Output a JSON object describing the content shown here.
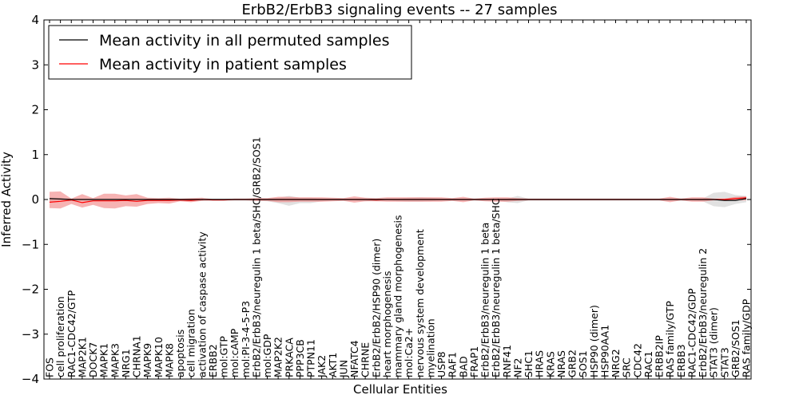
{
  "chart_data": {
    "type": "line",
    "title": "ErbB2/ErbB3 signaling events -- 27 samples",
    "xlabel": "Cellular Entities",
    "ylabel": "Inferred Activity",
    "ylim": [
      -4,
      4
    ],
    "yticks": [
      "−4",
      "−3",
      "−2",
      "−1",
      "0",
      "1",
      "2",
      "3",
      "4"
    ],
    "legend": {
      "position": "top-left",
      "entries": [
        {
          "label": "Mean activity in all permuted samples",
          "color": "#000000"
        },
        {
          "label": "Mean activity in patient samples",
          "color": "#ff0000"
        }
      ]
    },
    "categories": [
      "FOS",
      "cell proliferation",
      "RAC1-CDC42/GTP",
      "MAP2K1",
      "DOCK7",
      "MAPK1",
      "MAPK3",
      "NRG1",
      "CHRNA1",
      "MAPK9",
      "MAPK10",
      "MAPK8",
      "apoptosis",
      "cell migration",
      "activation of caspase activity",
      "ERBB2",
      "mol:GTP",
      "mol:cAMP",
      "mol:PI-3-4-5-P3",
      "ErbB2/ErbB3/neuregulin 1 beta/SHC/GRB2/SOS1",
      "mol:GDP",
      "MAP2K2",
      "PRKACA",
      "PPP3CB",
      "PTPN11",
      "JAK2",
      "AKT1",
      "JUN",
      "NFATC4",
      "CHRNE",
      "ErbB2/ErbB2/HSP90 (dimer)",
      "heart morphogenesis",
      "mammary gland morphogenesis",
      "mol:Ca2+",
      "nervous system development",
      "myelination",
      "USP8",
      "RAF1",
      "BAD",
      "FRAP1",
      "ErbB2/ErbB3/neuregulin 1 beta",
      "ErbB2/ErbB3/neuregulin 1 beta/SHC",
      "RNF41",
      "NF2",
      "SHC1",
      "HRAS",
      "KRAS",
      "NRAS",
      "GRB2",
      "SOS1",
      "HSP90 (dimer)",
      "HSP90AA1",
      "NRG2",
      "SRC",
      "CDC42",
      "RAC1",
      "ERBB2IP",
      "RAS family/GTP",
      "ERBB3",
      "RAC1-CDC42/GDP",
      "ErbB2/ErbB3/neuregulin 2",
      "STAT3 (dimer)",
      "STAT3",
      "GRB2/SOS1",
      "RAS family/GDP"
    ],
    "series": [
      {
        "name": "Mean activity in all permuted samples",
        "color": "#000000",
        "values": [
          0.02,
          0.01,
          0.0,
          0.0,
          0.0,
          0.0,
          0.0,
          0.0,
          0.0,
          0.0,
          0.0,
          0.0,
          0.0,
          0.0,
          0.0,
          0.0,
          0.0,
          0.0,
          0.0,
          0.0,
          0.0,
          0.0,
          0.0,
          0.0,
          0.0,
          0.0,
          0.0,
          0.0,
          0.0,
          0.0,
          0.0,
          0.0,
          0.0,
          0.0,
          0.0,
          0.0,
          0.0,
          0.0,
          0.0,
          0.0,
          0.0,
          0.0,
          0.0,
          0.0,
          0.0,
          0.0,
          0.0,
          0.0,
          0.0,
          0.0,
          0.0,
          0.0,
          0.0,
          0.0,
          0.0,
          0.0,
          0.0,
          0.0,
          0.0,
          0.0,
          0.0,
          0.0,
          -0.02,
          -0.02,
          0.02
        ],
        "band_upper": [
          0.04,
          0.03,
          0.02,
          0.02,
          0.02,
          0.02,
          0.02,
          0.02,
          0.02,
          0.02,
          0.02,
          0.02,
          0.02,
          0.02,
          0.02,
          0.02,
          0.02,
          0.02,
          0.02,
          0.02,
          0.02,
          0.04,
          0.08,
          0.04,
          0.04,
          0.02,
          0.02,
          0.02,
          0.02,
          0.02,
          0.02,
          0.02,
          0.02,
          0.04,
          0.05,
          0.04,
          0.02,
          0.02,
          0.02,
          0.02,
          0.02,
          0.02,
          0.02,
          0.08,
          0.02,
          0.02,
          0.02,
          0.02,
          0.02,
          0.02,
          0.02,
          0.02,
          0.02,
          0.02,
          0.02,
          0.02,
          0.02,
          0.02,
          0.02,
          0.02,
          0.02,
          0.15,
          0.17,
          0.1,
          0.08
        ],
        "band_lower": [
          -0.04,
          -0.03,
          -0.02,
          -0.02,
          -0.02,
          -0.02,
          -0.02,
          -0.02,
          -0.02,
          -0.02,
          -0.02,
          -0.02,
          -0.02,
          -0.02,
          -0.02,
          -0.02,
          -0.02,
          -0.02,
          -0.02,
          -0.02,
          -0.04,
          -0.08,
          -0.14,
          -0.08,
          -0.08,
          -0.04,
          -0.02,
          -0.02,
          -0.02,
          -0.04,
          -0.02,
          -0.02,
          -0.04,
          -0.05,
          -0.05,
          -0.04,
          -0.02,
          -0.02,
          -0.02,
          -0.02,
          -0.02,
          -0.02,
          -0.06,
          -0.08,
          -0.02,
          -0.02,
          -0.02,
          -0.02,
          -0.02,
          -0.02,
          -0.02,
          -0.02,
          -0.02,
          -0.02,
          -0.02,
          -0.02,
          -0.02,
          -0.02,
          -0.02,
          -0.02,
          -0.04,
          -0.15,
          -0.17,
          -0.1,
          -0.06
        ]
      },
      {
        "name": "Mean activity in patient samples",
        "color": "#ff0000",
        "values": [
          -0.06,
          -0.04,
          -0.01,
          -0.07,
          -0.03,
          -0.03,
          -0.03,
          -0.02,
          -0.04,
          -0.02,
          -0.02,
          -0.02,
          -0.01,
          -0.02,
          0.0,
          -0.01,
          -0.01,
          0.0,
          0.0,
          0.0,
          0.0,
          0.0,
          0.0,
          0.0,
          0.0,
          0.0,
          0.0,
          0.0,
          0.0,
          0.0,
          -0.01,
          0.0,
          0.0,
          0.0,
          0.0,
          0.0,
          0.0,
          0.0,
          0.0,
          0.0,
          0.0,
          0.0,
          0.0,
          0.0,
          0.0,
          0.0,
          0.0,
          0.0,
          0.0,
          0.0,
          0.0,
          0.0,
          0.0,
          0.0,
          0.0,
          0.0,
          0.0,
          0.0,
          0.0,
          0.0,
          0.0,
          0.0,
          0.0,
          0.02,
          0.04
        ],
        "band_upper": [
          0.17,
          0.18,
          0.02,
          0.12,
          0.03,
          0.13,
          0.13,
          0.09,
          0.12,
          0.04,
          0.03,
          0.04,
          0.02,
          0.03,
          0.04,
          0.01,
          0.01,
          0.02,
          0.02,
          0.03,
          0.03,
          0.06,
          0.06,
          0.05,
          0.05,
          0.05,
          0.04,
          0.03,
          0.07,
          0.04,
          0.03,
          0.05,
          0.05,
          0.05,
          0.05,
          0.05,
          0.05,
          0.03,
          0.06,
          0.02,
          0.04,
          0.05,
          0.05,
          0.03,
          0.02,
          0.02,
          0.02,
          0.02,
          0.02,
          0.02,
          0.02,
          0.02,
          0.02,
          0.02,
          0.02,
          0.02,
          0.02,
          0.06,
          0.02,
          0.05,
          0.05,
          0.02,
          0.02,
          0.06,
          0.07
        ],
        "band_lower": [
          -0.19,
          -0.2,
          -0.1,
          -0.18,
          -0.12,
          -0.19,
          -0.2,
          -0.15,
          -0.16,
          -0.1,
          -0.08,
          -0.09,
          -0.04,
          -0.06,
          -0.03,
          -0.02,
          -0.02,
          -0.02,
          -0.02,
          -0.03,
          -0.03,
          -0.06,
          -0.06,
          -0.05,
          -0.05,
          -0.05,
          -0.04,
          -0.03,
          -0.07,
          -0.04,
          -0.04,
          -0.05,
          -0.05,
          -0.05,
          -0.05,
          -0.05,
          -0.05,
          -0.03,
          -0.06,
          -0.02,
          -0.04,
          -0.05,
          -0.05,
          -0.03,
          -0.02,
          -0.02,
          -0.02,
          -0.02,
          -0.02,
          -0.02,
          -0.02,
          -0.02,
          -0.02,
          -0.02,
          -0.02,
          -0.02,
          -0.02,
          -0.06,
          -0.02,
          -0.05,
          -0.05,
          -0.02,
          -0.02,
          -0.02,
          -0.02
        ]
      }
    ]
  }
}
